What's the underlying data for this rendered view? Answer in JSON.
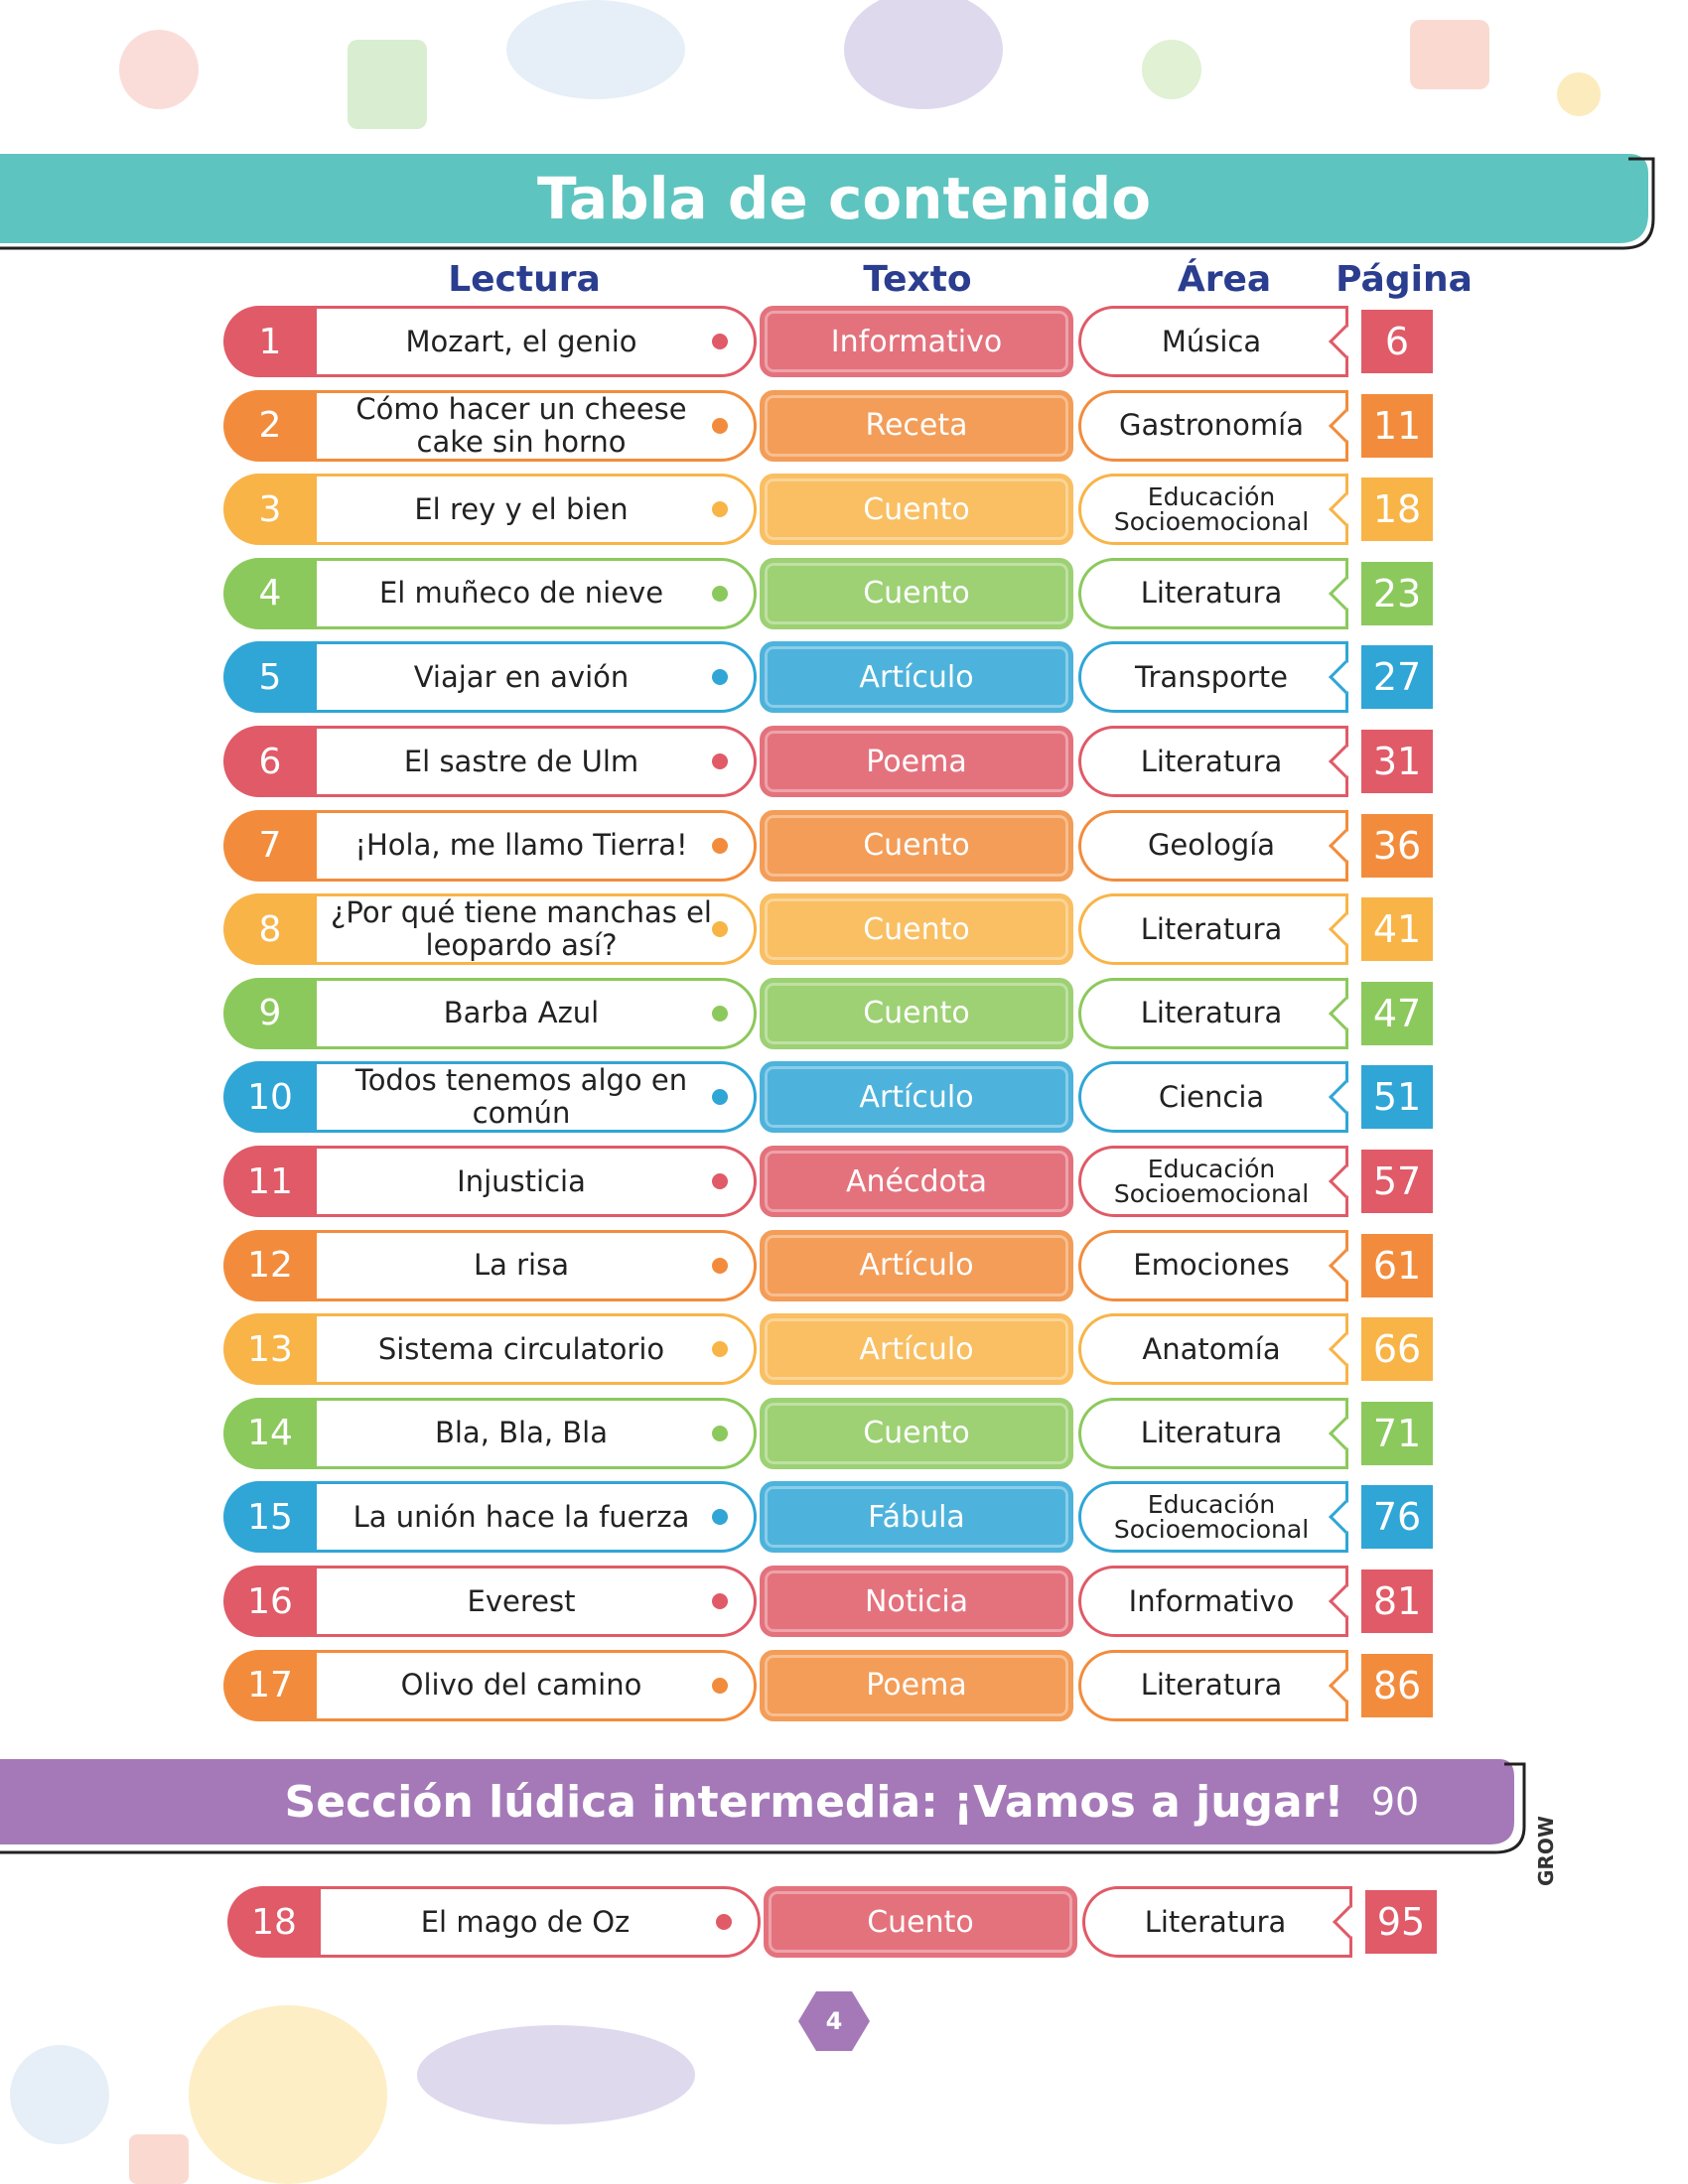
{
  "header": {
    "title": "Tabla de contenido"
  },
  "columns": [
    "Lectura",
    "Texto",
    "Área",
    "Página"
  ],
  "rows": [
    {
      "number": "1",
      "reading": "Mozart, el genio",
      "text_type": "Informativo",
      "area": "Música",
      "page": "6",
      "color": "#e05a67"
    },
    {
      "number": "2",
      "reading": "Cómo hacer un cheese cake sin horno",
      "text_type": "Receta",
      "area": "Gastronomía",
      "page": "11",
      "color": "#f28c3c"
    },
    {
      "number": "3",
      "reading": "El rey y el bien",
      "text_type": "Cuento",
      "area": "Educación Socioemocional",
      "page": "18",
      "color": "#f8b447"
    },
    {
      "number": "4",
      "reading": "El muñeco de nieve",
      "text_type": "Cuento",
      "area": "Literatura",
      "page": "23",
      "color": "#8cc95c"
    },
    {
      "number": "5",
      "reading": "Viajar en avión",
      "text_type": "Artículo",
      "area": "Transporte",
      "page": "27",
      "color": "#2fa6d6"
    },
    {
      "number": "6",
      "reading": "El sastre de Ulm",
      "text_type": "Poema",
      "area": "Literatura",
      "page": "31",
      "color": "#e05a67"
    },
    {
      "number": "7",
      "reading": "¡Hola, me llamo Tierra!",
      "text_type": "Cuento",
      "area": "Geología",
      "page": "36",
      "color": "#f28c3c"
    },
    {
      "number": "8",
      "reading": "¿Por qué tiene manchas el leopardo así?",
      "text_type": "Cuento",
      "area": "Literatura",
      "page": "41",
      "color": "#f8b447"
    },
    {
      "number": "9",
      "reading": "Barba Azul",
      "text_type": "Cuento",
      "area": "Literatura",
      "page": "47",
      "color": "#8cc95c"
    },
    {
      "number": "10",
      "reading": "Todos tenemos algo en común",
      "text_type": "Artículo",
      "area": "Ciencia",
      "page": "51",
      "color": "#2fa6d6"
    },
    {
      "number": "11",
      "reading": "Injusticia",
      "text_type": "Anécdota",
      "area": "Educación Socioemocional",
      "page": "57",
      "color": "#e05a67"
    },
    {
      "number": "12",
      "reading": "La risa",
      "text_type": "Artículo",
      "area": "Emociones",
      "page": "61",
      "color": "#f28c3c"
    },
    {
      "number": "13",
      "reading": "Sistema circulatorio",
      "text_type": "Artículo",
      "area": "Anatomía",
      "page": "66",
      "color": "#f8b447"
    },
    {
      "number": "14",
      "reading": "Bla, Bla, Bla",
      "text_type": "Cuento",
      "area": "Literatura",
      "page": "71",
      "color": "#8cc95c"
    },
    {
      "number": "15",
      "reading": "La unión hace la fuerza",
      "text_type": "Fábula",
      "area": "Educación Socioemocional",
      "page": "76",
      "color": "#2fa6d6"
    },
    {
      "number": "16",
      "reading": "Everest",
      "text_type": "Noticia",
      "area": "Informativo",
      "page": "81",
      "color": "#e05a67"
    },
    {
      "number": "17",
      "reading": "Olivo del camino",
      "text_type": "Poema",
      "area": "Literatura",
      "page": "86",
      "color": "#f28c3c"
    }
  ],
  "section": {
    "title": "Sección lúdica intermedia: ¡Vamos a jugar!",
    "page": "90"
  },
  "extra_rows": [
    {
      "number": "18",
      "reading": "El mago de Oz",
      "text_type": "Cuento",
      "area": "Literatura",
      "page": "95",
      "color": "#e05a67"
    }
  ],
  "footer": {
    "page_number": "4",
    "brand": "GROW"
  }
}
